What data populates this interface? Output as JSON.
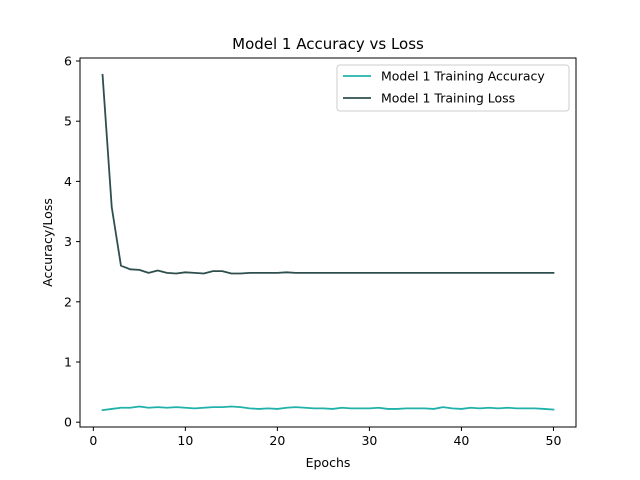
{
  "chart_data": {
    "type": "line",
    "title": "Model 1 Accuracy vs Loss",
    "xlabel": "Epochs",
    "ylabel": "Accuracy/Loss",
    "xlim": [
      -1.45,
      52.45
    ],
    "ylim": [
      -0.08,
      6.05
    ],
    "xticks": [
      0,
      10,
      20,
      30,
      40,
      50
    ],
    "yticks": [
      0,
      1,
      2,
      3,
      4,
      5,
      6
    ],
    "grid": false,
    "legend_position": "top-right",
    "x": [
      1,
      2,
      3,
      4,
      5,
      6,
      7,
      8,
      9,
      10,
      11,
      12,
      13,
      14,
      15,
      16,
      17,
      18,
      19,
      20,
      21,
      22,
      23,
      24,
      25,
      26,
      27,
      28,
      29,
      30,
      31,
      32,
      33,
      34,
      35,
      36,
      37,
      38,
      39,
      40,
      41,
      42,
      43,
      44,
      45,
      46,
      47,
      48,
      49,
      50
    ],
    "series": [
      {
        "name": "Model 1 Training Accuracy",
        "color": "#20b2aa",
        "values": [
          0.2,
          0.22,
          0.24,
          0.24,
          0.26,
          0.24,
          0.25,
          0.24,
          0.25,
          0.24,
          0.23,
          0.24,
          0.25,
          0.25,
          0.26,
          0.25,
          0.23,
          0.22,
          0.23,
          0.22,
          0.24,
          0.25,
          0.24,
          0.23,
          0.23,
          0.22,
          0.24,
          0.23,
          0.23,
          0.23,
          0.24,
          0.22,
          0.22,
          0.23,
          0.23,
          0.23,
          0.22,
          0.25,
          0.23,
          0.22,
          0.24,
          0.23,
          0.24,
          0.23,
          0.24,
          0.23,
          0.23,
          0.23,
          0.22,
          0.21
        ]
      },
      {
        "name": "Model 1 Training Loss",
        "color": "#2f4f4f",
        "values": [
          5.77,
          3.57,
          2.6,
          2.54,
          2.53,
          2.48,
          2.52,
          2.48,
          2.47,
          2.49,
          2.48,
          2.47,
          2.51,
          2.51,
          2.47,
          2.47,
          2.48,
          2.48,
          2.48,
          2.48,
          2.49,
          2.48,
          2.48,
          2.48,
          2.48,
          2.48,
          2.48,
          2.48,
          2.48,
          2.48,
          2.48,
          2.48,
          2.48,
          2.48,
          2.48,
          2.48,
          2.48,
          2.48,
          2.48,
          2.48,
          2.48,
          2.48,
          2.48,
          2.48,
          2.48,
          2.48,
          2.48,
          2.48,
          2.48,
          2.48
        ]
      }
    ]
  }
}
